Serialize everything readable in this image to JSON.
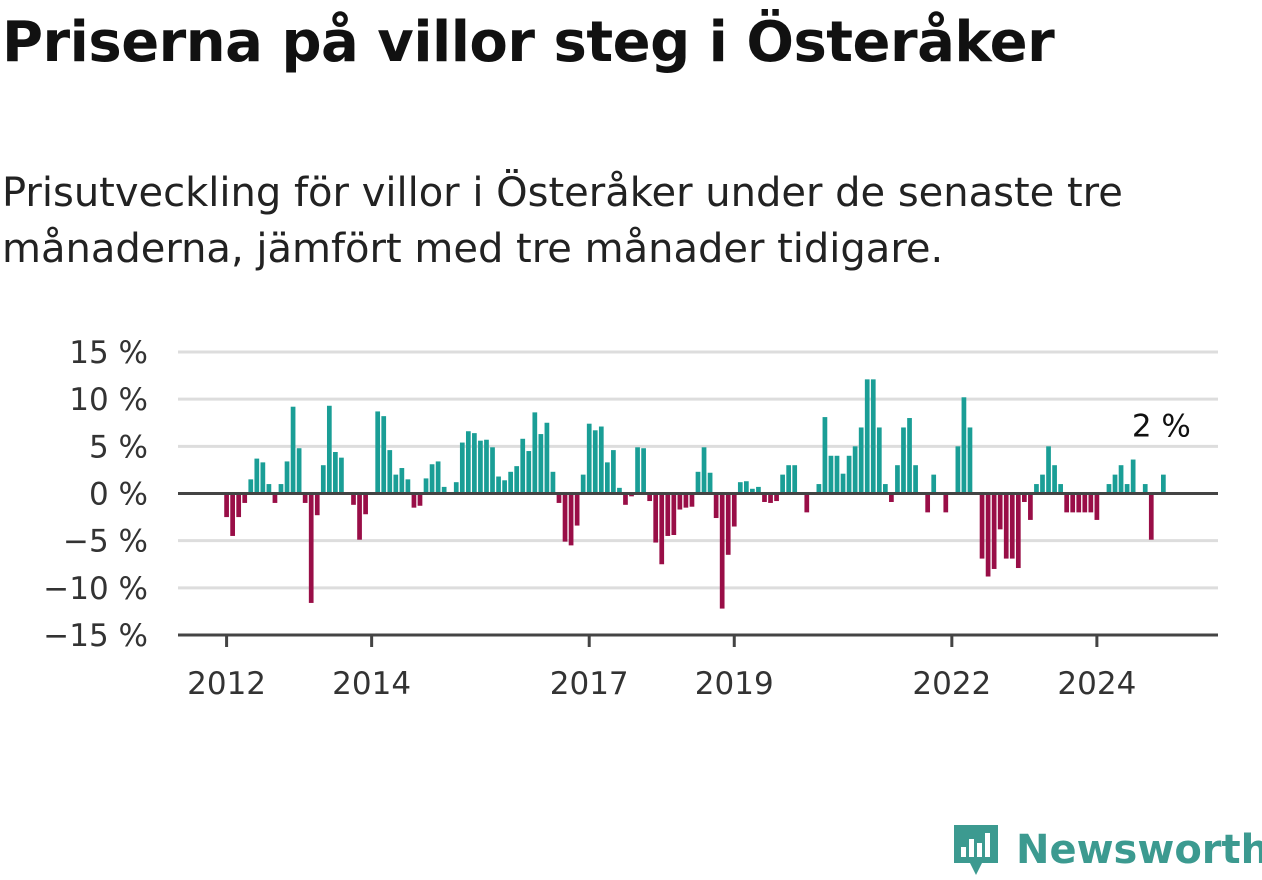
{
  "title": "Priserna på villor steg i Österåker",
  "subtitle": "Prisutveckling för villor i Österåker under de senaste tre månaderna, jämfört med tre månader tidigare.",
  "brand": {
    "name": "Newsworthy"
  },
  "colors": {
    "positive": "#1a9e96",
    "negative": "#990e47",
    "grid": "#dddddd",
    "axis": "#444444",
    "brand": "#3c9a90"
  },
  "chart_data": {
    "type": "bar",
    "title": "Priserna på villor steg i Österåker",
    "xlabel": "",
    "ylabel": "",
    "ylim": [
      -15,
      15
    ],
    "y_ticks": [
      15,
      10,
      5,
      0,
      -5,
      -10,
      -15
    ],
    "y_tick_labels": [
      "15 %",
      "10 %",
      "5 %",
      "0 %",
      "−5 %",
      "−10 %",
      "−15 %"
    ],
    "x_range": [
      2011.33,
      2025.67
    ],
    "x_ticks": [
      2012,
      2014,
      2017,
      2019,
      2022,
      2024
    ],
    "x_tick_labels": [
      "2012",
      "2014",
      "2017",
      "2019",
      "2022",
      "2024"
    ],
    "end_label": "2 %",
    "grid": true,
    "start_month": "2012-01",
    "values": [
      -2.5,
      -4.5,
      -2.5,
      -1,
      1.5,
      3.7,
      3.3,
      1,
      -1,
      1,
      3.4,
      9.2,
      4.8,
      -1,
      -11.6,
      -2.3,
      3,
      9.3,
      4.4,
      3.8,
      0,
      -1.2,
      -4.9,
      -2.2,
      0,
      8.7,
      8.2,
      4.6,
      2,
      2.7,
      1.5,
      -1.5,
      -1.3,
      1.6,
      3.1,
      3.4,
      0.7,
      0,
      1.2,
      5.4,
      6.6,
      6.4,
      5.6,
      5.7,
      4.9,
      1.8,
      1.4,
      2.3,
      2.9,
      5.8,
      4.5,
      8.6,
      6.3,
      7.5,
      2.3,
      -1,
      -5.1,
      -5.5,
      -3.4,
      2,
      7.4,
      6.7,
      7.1,
      3.3,
      4.6,
      0.6,
      -1.2,
      -0.3,
      4.9,
      4.8,
      -0.8,
      -5.2,
      -7.5,
      -4.5,
      -4.4,
      -1.7,
      -1.5,
      -1.4,
      2.3,
      4.9,
      2.2,
      -2.6,
      -12.2,
      -6.5,
      -3.5,
      1.2,
      1.3,
      0.5,
      0.7,
      -0.9,
      -1,
      -0.8,
      2,
      3,
      3,
      0,
      -2,
      0,
      1,
      8.1,
      4,
      4,
      2.1,
      4,
      5,
      7,
      12.1,
      12.1,
      7,
      1,
      -0.9,
      3,
      7,
      8,
      3,
      0,
      -2,
      2,
      0,
      -2,
      0,
      5,
      10.2,
      7,
      0,
      -6.9,
      -8.8,
      -8,
      -3.8,
      -6.9,
      -6.9,
      -7.9,
      -0.9,
      -2.8,
      1,
      2,
      5,
      3,
      1,
      -2,
      -2,
      -2,
      -2,
      -2,
      -2.8,
      0,
      1,
      2,
      3,
      1,
      3.6,
      0,
      1,
      -4.9,
      0,
      2
    ]
  }
}
